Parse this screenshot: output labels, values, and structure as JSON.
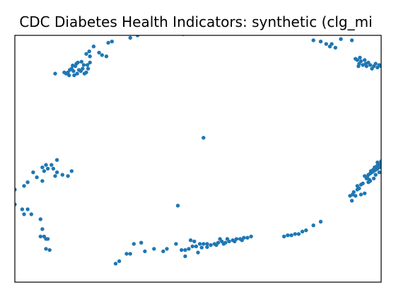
{
  "chart_data": {
    "type": "scatter",
    "title": "CDC Diabetes Health Indicators: synthetic (clg_mi",
    "xlabel": "",
    "ylabel": "",
    "xlim": [
      0,
      100
    ],
    "ylim": [
      0,
      100
    ],
    "grid": false,
    "legend": "none",
    "marker_color": "#1f77b4",
    "axis_color": "#000000",
    "points": [
      [
        14.5,
        85.0
      ],
      [
        15.5,
        86.5
      ],
      [
        16.5,
        87.5
      ],
      [
        15.0,
        86.0
      ],
      [
        14.0,
        84.5
      ],
      [
        17.5,
        86.0
      ],
      [
        18.5,
        86.5
      ],
      [
        19.5,
        85.0
      ],
      [
        20.0,
        86.5
      ],
      [
        19.0,
        84.5
      ],
      [
        18.0,
        85.5
      ],
      [
        17.0,
        84.5
      ],
      [
        16.0,
        85.5
      ],
      [
        13.5,
        85.0
      ],
      [
        14.8,
        83.8
      ],
      [
        16.2,
        83.8
      ],
      [
        18.8,
        88.0
      ],
      [
        19.8,
        88.0
      ],
      [
        17.2,
        89.0
      ],
      [
        15.8,
        87.8
      ],
      [
        16.8,
        88.5
      ],
      [
        18.2,
        89.3
      ],
      [
        20.5,
        89.0
      ],
      [
        11.0,
        84.5
      ],
      [
        20.5,
        91.5
      ],
      [
        19.5,
        92.5
      ],
      [
        20.3,
        93.5
      ],
      [
        21.5,
        95.5
      ],
      [
        23.0,
        93.0
      ],
      [
        23.8,
        92.0
      ],
      [
        25.0,
        91.5
      ],
      [
        25.5,
        97.0
      ],
      [
        26.5,
        97.5
      ],
      [
        31.5,
        99.0
      ],
      [
        33.5,
        100.0
      ],
      [
        46.0,
        100.5
      ],
      [
        51.0,
        101.5
      ],
      [
        51.5,
        101.0
      ],
      [
        52.5,
        101.5
      ],
      [
        53.0,
        101.0
      ],
      [
        54.0,
        101.5
      ],
      [
        55.5,
        101.0
      ],
      [
        56.0,
        101.5
      ],
      [
        57.0,
        101.5
      ],
      [
        57.5,
        101.0
      ],
      [
        55.0,
        101.2
      ],
      [
        58.0,
        101.3
      ],
      [
        60.0,
        101.5
      ],
      [
        62.0,
        101.8
      ],
      [
        52.0,
        101.2
      ],
      [
        54.5,
        101.8
      ],
      [
        81.5,
        98.0
      ],
      [
        83.5,
        97.5
      ],
      [
        85.0,
        96.5
      ],
      [
        86.5,
        96.5
      ],
      [
        86.0,
        95.5
      ],
      [
        87.5,
        95.0
      ],
      [
        93.0,
        90.5
      ],
      [
        93.5,
        90.0
      ],
      [
        94.0,
        88.5
      ],
      [
        95.0,
        88.0
      ],
      [
        96.0,
        87.5
      ],
      [
        97.0,
        88.0
      ],
      [
        98.0,
        87.5
      ],
      [
        98.5,
        88.5
      ],
      [
        99.5,
        88.0
      ],
      [
        96.5,
        89.0
      ],
      [
        95.5,
        90.0
      ],
      [
        94.5,
        89.5
      ],
      [
        95.8,
        88.5
      ],
      [
        93.8,
        87.5
      ],
      [
        99.0,
        87.0
      ],
      [
        97.5,
        86.5
      ],
      [
        100.0,
        87.5
      ],
      [
        100.5,
        88.0
      ],
      [
        94.2,
        91.0
      ],
      [
        96.5,
        43.5
      ],
      [
        97.0,
        44.0
      ],
      [
        97.5,
        44.5
      ],
      [
        98.0,
        45.0
      ],
      [
        98.5,
        45.5
      ],
      [
        99.0,
        46.0
      ],
      [
        99.5,
        46.5
      ],
      [
        100.0,
        47.0
      ],
      [
        100.5,
        47.5
      ],
      [
        97.2,
        45.0
      ],
      [
        97.8,
        45.5
      ],
      [
        98.2,
        46.5
      ],
      [
        98.8,
        47.0
      ],
      [
        99.2,
        47.5
      ],
      [
        99.8,
        48.0
      ],
      [
        100.2,
        48.5
      ],
      [
        95.5,
        43.0
      ],
      [
        96.0,
        42.0
      ],
      [
        96.8,
        41.5
      ],
      [
        95.0,
        40.0
      ],
      [
        94.5,
        39.5
      ],
      [
        93.5,
        39.0
      ],
      [
        94.0,
        38.0
      ],
      [
        92.5,
        36.5
      ],
      [
        91.5,
        35.0
      ],
      [
        92.0,
        33.0
      ],
      [
        95.5,
        36.0
      ],
      [
        93.5,
        37.5
      ],
      [
        94.5,
        35.5
      ],
      [
        96.2,
        42.5
      ],
      [
        98.5,
        43.5
      ],
      [
        99.5,
        44.5
      ],
      [
        100.5,
        45.5
      ],
      [
        99.0,
        48.5
      ],
      [
        100.0,
        49.0
      ],
      [
        100.5,
        46.5
      ],
      [
        97.0,
        41.0
      ],
      [
        98.0,
        42.0
      ],
      [
        96.5,
        40.5
      ],
      [
        93.0,
        35.0
      ],
      [
        92.2,
        35.5
      ],
      [
        83.5,
        24.5
      ],
      [
        81.5,
        23.0
      ],
      [
        79.5,
        21.0
      ],
      [
        78.5,
        20.5
      ],
      [
        77.5,
        19.5
      ],
      [
        76.5,
        19.5
      ],
      [
        75.5,
        19.0
      ],
      [
        74.5,
        19.0
      ],
      [
        73.5,
        18.5
      ],
      [
        64.5,
        18.5
      ],
      [
        63.5,
        18.0
      ],
      [
        62.5,
        18.0
      ],
      [
        61.5,
        17.5
      ],
      [
        60.5,
        17.5
      ],
      [
        59.5,
        17.0
      ],
      [
        58.5,
        16.5
      ],
      [
        57.5,
        16.0
      ],
      [
        56.5,
        16.5
      ],
      [
        55.5,
        16.0
      ],
      [
        54.5,
        15.5
      ],
      [
        53.5,
        15.0
      ],
      [
        52.5,
        15.5
      ],
      [
        51.5,
        15.5
      ],
      [
        50.5,
        15.5
      ],
      [
        49.5,
        14.5
      ],
      [
        48.5,
        14.5
      ],
      [
        47.5,
        13.5
      ],
      [
        46.5,
        13.0
      ],
      [
        45.5,
        13.0
      ],
      [
        56.0,
        17.5
      ],
      [
        58.0,
        17.5
      ],
      [
        60.0,
        16.5
      ],
      [
        62.0,
        17.0
      ],
      [
        55.0,
        15.0
      ],
      [
        57.0,
        15.5
      ],
      [
        48.0,
        17.0
      ],
      [
        49.0,
        16.5
      ],
      [
        51.0,
        14.0
      ],
      [
        52.5,
        14.2
      ],
      [
        50.0,
        12.0
      ],
      [
        46.5,
        10.5
      ],
      [
        44.0,
        15.5
      ],
      [
        41.5,
        13.5
      ],
      [
        40.5,
        12.5
      ],
      [
        38.0,
        13.5
      ],
      [
        35.5,
        12.5
      ],
      [
        31.5,
        11.5
      ],
      [
        30.5,
        11.5
      ],
      [
        28.5,
        8.5
      ],
      [
        27.5,
        7.5
      ],
      [
        34.5,
        16.0
      ],
      [
        32.5,
        15.5
      ],
      [
        2.5,
        39.0
      ],
      [
        3.5,
        40.5
      ],
      [
        6.0,
        42.5
      ],
      [
        7.5,
        41.0
      ],
      [
        5.0,
        44.5
      ],
      [
        7.5,
        46.5
      ],
      [
        8.5,
        47.5
      ],
      [
        8.0,
        45.0
      ],
      [
        11.0,
        43.0
      ],
      [
        11.5,
        44.5
      ],
      [
        13.0,
        43.5
      ],
      [
        14.5,
        43.0
      ],
      [
        15.5,
        45.0
      ],
      [
        11.5,
        49.5
      ],
      [
        10.5,
        46.0
      ],
      [
        9.0,
        46.0
      ],
      [
        10.0,
        47.5
      ],
      [
        0.0,
        31.5
      ],
      [
        0.0,
        37.5
      ],
      [
        2.0,
        29.5
      ],
      [
        3.5,
        29.5
      ],
      [
        2.5,
        27.5
      ],
      [
        4.5,
        27.5
      ],
      [
        7.0,
        25.5
      ],
      [
        7.5,
        21.5
      ],
      [
        8.0,
        18.5
      ],
      [
        7.0,
        18.5
      ],
      [
        8.5,
        17.5
      ],
      [
        8.5,
        13.5
      ],
      [
        9.5,
        13.0
      ],
      [
        9.0,
        17.5
      ],
      [
        44.5,
        31.0
      ],
      [
        51.5,
        58.5
      ],
      [
        89.0,
        98.5
      ],
      [
        92.0,
        98.0
      ]
    ]
  }
}
